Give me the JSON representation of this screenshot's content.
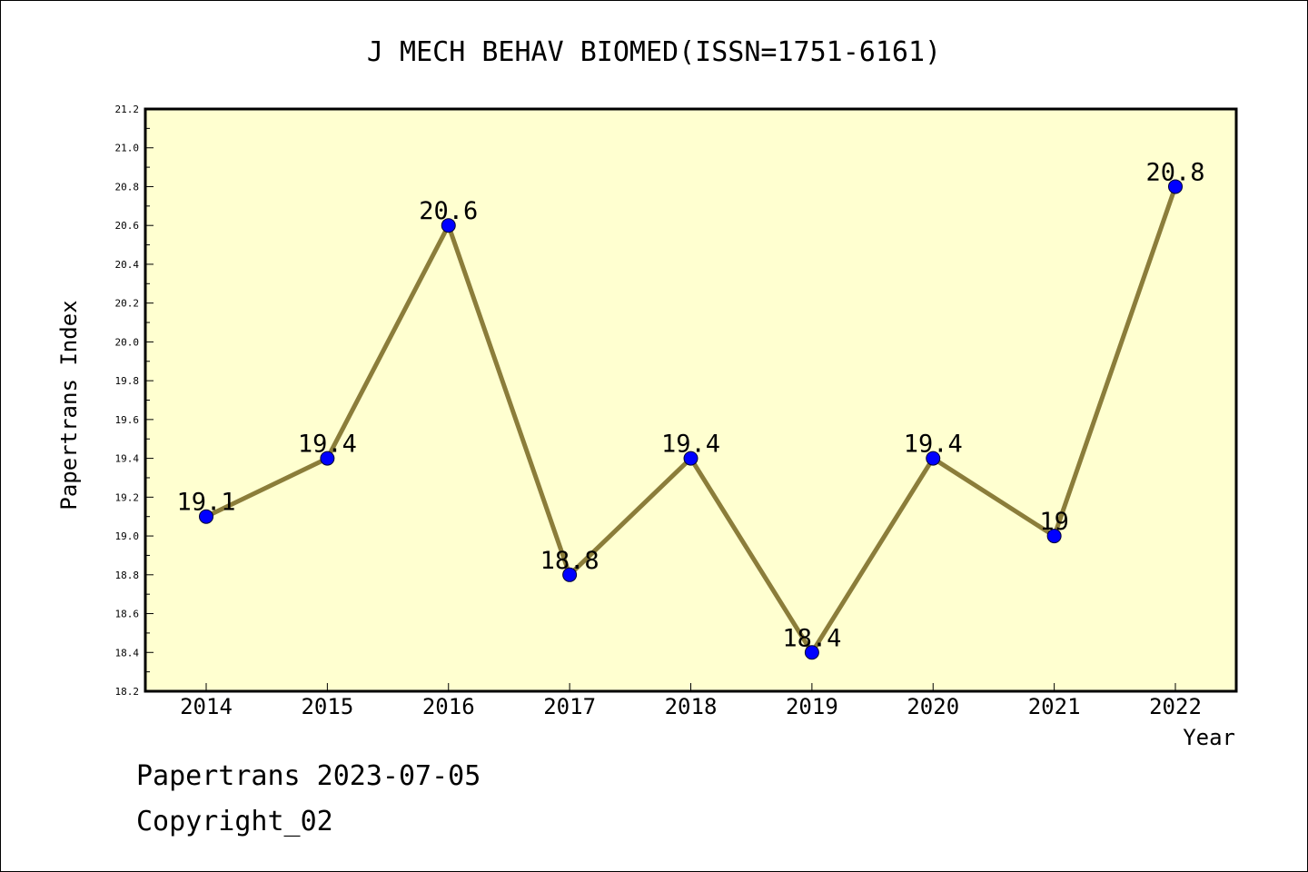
{
  "chart_data": {
    "type": "line",
    "title": "J MECH BEHAV BIOMED(ISSN=1751-6161)",
    "xlabel": "Year",
    "ylabel": "Papertrans Index",
    "categories": [
      "2014",
      "2015",
      "2016",
      "2017",
      "2018",
      "2019",
      "2020",
      "2021",
      "2022"
    ],
    "series": [
      {
        "values": [
          19.1,
          19.4,
          20.6,
          18.8,
          19.4,
          18.4,
          19.4,
          19.0,
          20.8
        ],
        "data_labels": [
          "19.1",
          "19.4",
          "20.6",
          "18.8",
          "19.4",
          "18.4",
          "19.4",
          "19",
          "20.8"
        ]
      }
    ],
    "ylim": [
      18.2,
      21.2
    ],
    "yticks": [
      "18.2",
      "18.4",
      "18.6",
      "18.8",
      "19.0",
      "19.2",
      "19.4",
      "19.6",
      "19.8",
      "20.0",
      "20.2",
      "20.4",
      "20.6",
      "20.8",
      "21.0",
      "21.2"
    ],
    "grid": false,
    "colors": {
      "plot_background": "#FFFFD0",
      "line": "#8B7D3A",
      "marker": "#0000FF"
    }
  },
  "footer": {
    "line1": "Papertrans 2023-07-05",
    "line2": "Copyright_02"
  }
}
